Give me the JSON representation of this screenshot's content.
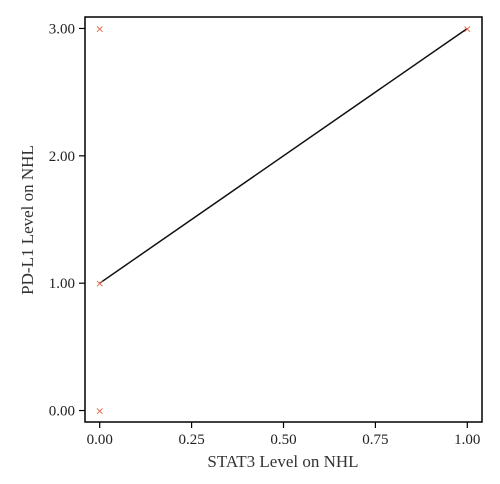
{
  "chart_data": {
    "type": "scatter",
    "xlabel": "STAT3 Level on NHL",
    "ylabel": "PD-L1 Level on NHL",
    "xlim": [
      -0.04,
      1.04
    ],
    "ylim": [
      -0.09,
      3.09
    ],
    "x_ticks": [
      0,
      0.25,
      0.5,
      0.75,
      1
    ],
    "x_tick_labels": [
      "0.00",
      "0.25",
      "0.50",
      "0.75",
      "1.00"
    ],
    "y_ticks": [
      0,
      1,
      2,
      3
    ],
    "y_tick_labels": [
      "0.00",
      "1.00",
      "2.00",
      "3.00"
    ],
    "grid": false,
    "legend": "none",
    "points": [
      {
        "x": 0,
        "y": 3
      },
      {
        "x": 0,
        "y": 1
      },
      {
        "x": 0,
        "y": 0
      },
      {
        "x": 1,
        "y": 3
      }
    ],
    "point_marker": "×",
    "point_color": "#e0664a",
    "fit_line": {
      "x": [
        0,
        1
      ],
      "y": [
        1,
        3
      ],
      "color": "#111111"
    }
  }
}
